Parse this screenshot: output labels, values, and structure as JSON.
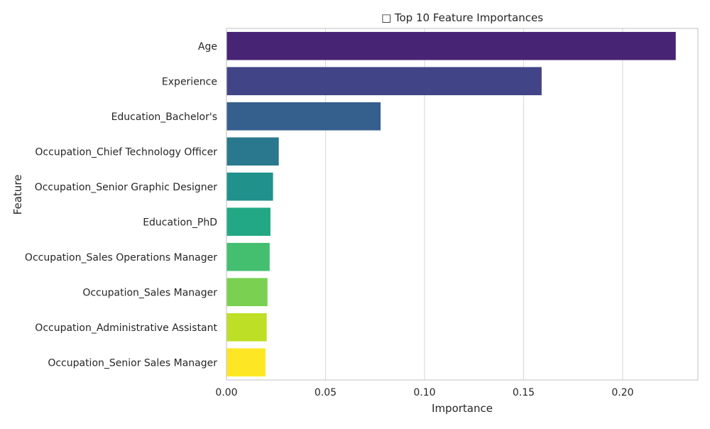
{
  "chart_data": {
    "type": "bar",
    "orientation": "horizontal",
    "title": "□ Top 10 Feature Importances",
    "xlabel": "Importance",
    "ylabel": "Feature",
    "xlim": [
      0,
      0.238
    ],
    "xticks": [
      0.0,
      0.05,
      0.1,
      0.15,
      0.2
    ],
    "xtick_labels": [
      "0.00",
      "0.05",
      "0.10",
      "0.15",
      "0.20"
    ],
    "grid": "vertical",
    "categories": [
      "Age",
      "Experience",
      "Education_Bachelor's",
      "Occupation_Chief Technology Officer",
      "Occupation_Senior Graphic Designer",
      "Education_PhD",
      "Occupation_Sales Operations Manager",
      "Occupation_Sales Manager",
      "Occupation_Administrative Assistant",
      "Occupation_Senior Sales Manager"
    ],
    "values": [
      0.2268,
      0.1591,
      0.0778,
      0.0264,
      0.0235,
      0.0222,
      0.0218,
      0.0207,
      0.0203,
      0.0197
    ],
    "colors": [
      "#482475",
      "#414487",
      "#355f8d",
      "#2a788e",
      "#21918c",
      "#22a884",
      "#44bf70",
      "#7ad151",
      "#bddf26",
      "#fde725"
    ]
  }
}
